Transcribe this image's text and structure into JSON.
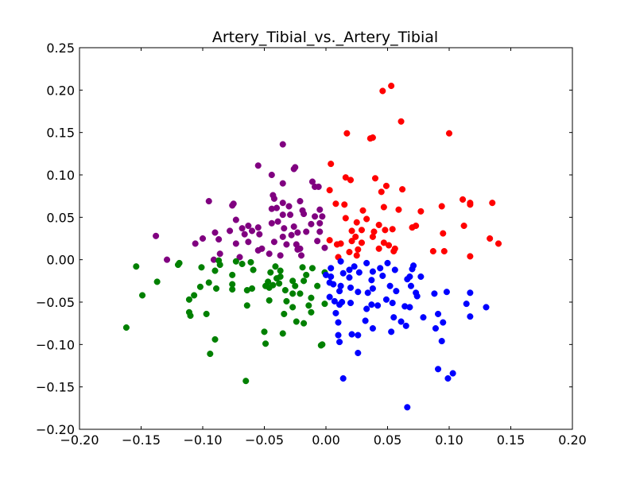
{
  "chart_data": {
    "type": "scatter",
    "title": "Artery_Tibial_vs._Artery_Tibial",
    "xlabel": "",
    "ylabel": "",
    "xlim": [
      -0.2,
      0.2
    ],
    "ylim": [
      -0.2,
      0.25
    ],
    "x_ticks": [
      -0.2,
      -0.15,
      -0.1,
      -0.05,
      0.0,
      0.05,
      0.1,
      0.15,
      0.2
    ],
    "y_ticks": [
      -0.2,
      -0.15,
      -0.1,
      -0.05,
      0.0,
      0.05,
      0.1,
      0.15,
      0.2,
      0.25
    ],
    "x_tick_labels": [
      "−0.20",
      "−0.15",
      "−0.10",
      "−0.05",
      "0.00",
      "0.05",
      "0.10",
      "0.15",
      "0.20"
    ],
    "y_tick_labels": [
      "−0.20",
      "−0.15",
      "−0.10",
      "−0.05",
      "0.00",
      "0.05",
      "0.10",
      "0.15",
      "0.20",
      "0.25"
    ],
    "grid": false,
    "series": [
      {
        "color": "#ff0000",
        "points": [
          [
            0.053,
            0.205
          ],
          [
            0.046,
            0.199
          ],
          [
            0.061,
            0.163
          ],
          [
            0.017,
            0.149
          ],
          [
            0.1,
            0.149
          ],
          [
            0.038,
            0.144
          ],
          [
            0.036,
            0.143
          ],
          [
            0.004,
            0.113
          ],
          [
            0.016,
            0.097
          ],
          [
            0.04,
            0.096
          ],
          [
            0.02,
            0.094
          ],
          [
            0.049,
            0.087
          ],
          [
            0.045,
            0.08
          ],
          [
            0.062,
            0.083
          ],
          [
            0.003,
            0.082
          ],
          [
            0.111,
            0.071
          ],
          [
            0.135,
            0.067
          ],
          [
            0.117,
            0.067
          ],
          [
            0.117,
            0.065
          ],
          [
            0.015,
            0.065
          ],
          [
            0.008,
            0.066
          ],
          [
            0.047,
            0.062
          ],
          [
            0.094,
            0.063
          ],
          [
            0.059,
            0.059
          ],
          [
            0.03,
            0.058
          ],
          [
            0.077,
            0.057
          ],
          [
            0.016,
            0.049
          ],
          [
            0.033,
            0.048
          ],
          [
            0.025,
            0.044
          ],
          [
            0.043,
            0.041
          ],
          [
            0.073,
            0.04
          ],
          [
            0.07,
            0.038
          ],
          [
            0.112,
            0.04
          ],
          [
            0.054,
            0.036
          ],
          [
            0.029,
            0.035
          ],
          [
            0.021,
            0.034
          ],
          [
            0.048,
            0.035
          ],
          [
            0.039,
            0.033
          ],
          [
            0.095,
            0.031
          ],
          [
            0.024,
            0.027
          ],
          [
            0.038,
            0.027
          ],
          [
            0.133,
            0.025
          ],
          [
            0.003,
            0.023
          ],
          [
            0.021,
            0.022
          ],
          [
            0.047,
            0.02
          ],
          [
            0.029,
            0.02
          ],
          [
            0.14,
            0.019
          ],
          [
            0.012,
            0.019
          ],
          [
            0.009,
            0.018
          ],
          [
            0.051,
            0.017
          ],
          [
            0.056,
            0.013
          ],
          [
            0.043,
            0.013
          ],
          [
            0.055,
            0.01
          ],
          [
            0.026,
            0.012
          ],
          [
            0.087,
            0.01
          ],
          [
            0.096,
            0.01
          ],
          [
            0.019,
            0.009
          ],
          [
            0.025,
            0.005
          ],
          [
            0.117,
            0.004
          ],
          [
            0.01,
            0.003
          ]
        ]
      },
      {
        "color": "#800080",
        "points": [
          [
            -0.035,
            0.136
          ],
          [
            -0.055,
            0.111
          ],
          [
            -0.025,
            0.109
          ],
          [
            -0.026,
            0.107
          ],
          [
            -0.044,
            0.1
          ],
          [
            -0.011,
            0.092
          ],
          [
            -0.035,
            0.09
          ],
          [
            -0.009,
            0.086
          ],
          [
            -0.006,
            0.086
          ],
          [
            -0.043,
            0.076
          ],
          [
            -0.042,
            0.072
          ],
          [
            -0.021,
            0.069
          ],
          [
            -0.095,
            0.069
          ],
          [
            -0.035,
            0.067
          ],
          [
            -0.075,
            0.066
          ],
          [
            -0.076,
            0.064
          ],
          [
            -0.03,
            0.063
          ],
          [
            -0.04,
            0.061
          ],
          [
            -0.005,
            0.059
          ],
          [
            -0.044,
            0.06
          ],
          [
            -0.019,
            0.058
          ],
          [
            -0.018,
            0.054
          ],
          [
            -0.035,
            0.053
          ],
          [
            -0.029,
            0.053
          ],
          [
            -0.003,
            0.051
          ],
          [
            -0.009,
            0.051
          ],
          [
            -0.073,
            0.047
          ],
          [
            -0.039,
            0.045
          ],
          [
            -0.005,
            0.043
          ],
          [
            -0.012,
            0.042
          ],
          [
            -0.026,
            0.039
          ],
          [
            -0.044,
            0.043
          ],
          [
            -0.063,
            0.04
          ],
          [
            -0.055,
            0.038
          ],
          [
            -0.068,
            0.037
          ],
          [
            -0.034,
            0.037
          ],
          [
            -0.078,
            0.034
          ],
          [
            -0.06,
            0.034
          ],
          [
            -0.005,
            0.033
          ],
          [
            -0.016,
            0.033
          ],
          [
            -0.023,
            0.032
          ],
          [
            -0.09,
            0.032
          ],
          [
            -0.054,
            0.03
          ],
          [
            -0.066,
            0.03
          ],
          [
            -0.028,
            0.029
          ],
          [
            -0.138,
            0.028
          ],
          [
            -0.035,
            0.027
          ],
          [
            -0.1,
            0.025
          ],
          [
            -0.087,
            0.024
          ],
          [
            -0.007,
            0.022
          ],
          [
            -0.042,
            0.021
          ],
          [
            -0.063,
            0.021
          ],
          [
            -0.106,
            0.019
          ],
          [
            -0.024,
            0.018
          ],
          [
            -0.073,
            0.019
          ],
          [
            -0.032,
            0.018
          ],
          [
            -0.052,
            0.013
          ],
          [
            -0.021,
            0.013
          ],
          [
            -0.001,
            0.014
          ],
          [
            -0.023,
            0.012
          ],
          [
            -0.055,
            0.011
          ],
          [
            -0.046,
            0.007
          ],
          [
            -0.086,
            0.007
          ],
          [
            -0.02,
            0.005
          ],
          [
            -0.037,
            0.005
          ],
          [
            -0.07,
            0.003
          ],
          [
            -0.129,
            0.0
          ],
          [
            -0.091,
            0.0
          ]
        ]
      },
      {
        "color": "#008000",
        "points": [
          [
            -0.119,
            -0.004
          ],
          [
            -0.12,
            -0.006
          ],
          [
            -0.087,
            -0.001
          ],
          [
            -0.073,
            -0.002
          ],
          [
            -0.061,
            -0.003
          ],
          [
            -0.068,
            -0.005
          ],
          [
            -0.154,
            -0.008
          ],
          [
            -0.086,
            -0.006
          ],
          [
            -0.101,
            -0.009
          ],
          [
            -0.041,
            -0.008
          ],
          [
            -0.019,
            -0.009
          ],
          [
            -0.059,
            -0.012
          ],
          [
            -0.09,
            -0.013
          ],
          [
            -0.011,
            -0.01
          ],
          [
            -0.037,
            -0.013
          ],
          [
            -0.045,
            -0.015
          ],
          [
            -0.001,
            -0.015
          ],
          [
            -0.076,
            -0.018
          ],
          [
            -0.095,
            -0.027
          ],
          [
            -0.016,
            -0.018
          ],
          [
            -0.04,
            -0.022
          ],
          [
            -0.037,
            -0.02
          ],
          [
            -0.027,
            -0.025
          ],
          [
            -0.038,
            -0.028
          ],
          [
            -0.137,
            -0.026
          ],
          [
            -0.047,
            -0.026
          ],
          [
            -0.018,
            -0.025
          ],
          [
            -0.076,
            -0.029
          ],
          [
            -0.025,
            -0.031
          ],
          [
            -0.049,
            -0.031
          ],
          [
            -0.089,
            -0.034
          ],
          [
            -0.102,
            -0.032
          ],
          [
            -0.043,
            -0.03
          ],
          [
            -0.007,
            -0.031
          ],
          [
            -0.06,
            -0.034
          ],
          [
            -0.046,
            -0.033
          ],
          [
            -0.076,
            -0.035
          ],
          [
            -0.033,
            -0.036
          ],
          [
            -0.064,
            -0.036
          ],
          [
            -0.149,
            -0.042
          ],
          [
            -0.027,
            -0.04
          ],
          [
            -0.107,
            -0.042
          ],
          [
            -0.021,
            -0.04
          ],
          [
            -0.012,
            -0.045
          ],
          [
            -0.111,
            -0.047
          ],
          [
            -0.046,
            -0.048
          ],
          [
            -0.032,
            -0.049
          ],
          [
            -0.001,
            -0.052
          ],
          [
            -0.014,
            -0.054
          ],
          [
            -0.064,
            -0.054
          ],
          [
            -0.027,
            -0.056
          ],
          [
            -0.111,
            -0.062
          ],
          [
            -0.012,
            -0.062
          ],
          [
            -0.034,
            -0.064
          ],
          [
            -0.097,
            -0.064
          ],
          [
            -0.11,
            -0.066
          ],
          [
            -0.024,
            -0.073
          ],
          [
            -0.018,
            -0.075
          ],
          [
            -0.162,
            -0.08
          ],
          [
            -0.05,
            -0.085
          ],
          [
            -0.035,
            -0.087
          ],
          [
            -0.09,
            -0.094
          ],
          [
            -0.049,
            -0.099
          ],
          [
            -0.004,
            -0.101
          ],
          [
            -0.003,
            -0.1
          ],
          [
            -0.094,
            -0.111
          ],
          [
            -0.065,
            -0.143
          ]
        ]
      },
      {
        "color": "#0000ff",
        "points": [
          [
            0.05,
            -0.004
          ],
          [
            0.023,
            -0.008
          ],
          [
            0.071,
            -0.007
          ],
          [
            0.012,
            -0.002
          ],
          [
            0.033,
            -0.004
          ],
          [
            0.07,
            -0.011
          ],
          [
            0.004,
            -0.01
          ],
          [
            0.019,
            -0.012
          ],
          [
            0.044,
            -0.01
          ],
          [
            0.056,
            -0.012
          ],
          [
            0.038,
            -0.014
          ],
          [
            0.027,
            -0.015
          ],
          [
            0.0,
            -0.018
          ],
          [
            0.046,
            -0.019
          ],
          [
            0.014,
            -0.016
          ],
          [
            0.068,
            -0.02
          ],
          [
            0.019,
            -0.021
          ],
          [
            0.066,
            -0.023
          ],
          [
            0.004,
            -0.02
          ],
          [
            0.037,
            -0.024
          ],
          [
            0.077,
            -0.02
          ],
          [
            0.003,
            -0.027
          ],
          [
            0.052,
            -0.031
          ],
          [
            0.006,
            -0.029
          ],
          [
            0.012,
            -0.031
          ],
          [
            0.069,
            -0.031
          ],
          [
            0.02,
            -0.033
          ],
          [
            0.038,
            -0.034
          ],
          [
            0.057,
            -0.037
          ],
          [
            0.011,
            -0.037
          ],
          [
            0.098,
            -0.038
          ],
          [
            0.026,
            -0.038
          ],
          [
            0.073,
            -0.039
          ],
          [
            0.034,
            -0.039
          ],
          [
            0.088,
            -0.04
          ],
          [
            0.117,
            -0.039
          ],
          [
            0.074,
            -0.043
          ],
          [
            0.003,
            -0.044
          ],
          [
            0.049,
            -0.047
          ],
          [
            0.007,
            -0.049
          ],
          [
            0.054,
            -0.051
          ],
          [
            0.011,
            -0.053
          ],
          [
            0.114,
            -0.052
          ],
          [
            0.02,
            -0.051
          ],
          [
            0.013,
            -0.05
          ],
          [
            0.037,
            -0.053
          ],
          [
            0.042,
            -0.054
          ],
          [
            0.064,
            -0.055
          ],
          [
            0.068,
            -0.056
          ],
          [
            0.13,
            -0.056
          ],
          [
            0.033,
            -0.058
          ],
          [
            0.008,
            -0.063
          ],
          [
            0.091,
            -0.064
          ],
          [
            0.055,
            -0.068
          ],
          [
            0.117,
            -0.067
          ],
          [
            0.079,
            -0.068
          ],
          [
            0.032,
            -0.072
          ],
          [
            0.061,
            -0.073
          ],
          [
            0.095,
            -0.074
          ],
          [
            0.01,
            -0.074
          ],
          [
            0.065,
            -0.078
          ],
          [
            0.089,
            -0.081
          ],
          [
            0.01,
            -0.089
          ],
          [
            0.026,
            -0.089
          ],
          [
            0.053,
            -0.085
          ],
          [
            0.038,
            -0.081
          ],
          [
            0.021,
            -0.088
          ],
          [
            0.094,
            -0.096
          ],
          [
            0.011,
            -0.097
          ],
          [
            0.026,
            -0.11
          ],
          [
            0.091,
            -0.129
          ],
          [
            0.103,
            -0.134
          ],
          [
            0.099,
            -0.14
          ],
          [
            0.014,
            -0.14
          ],
          [
            0.066,
            -0.174
          ]
        ]
      }
    ]
  }
}
